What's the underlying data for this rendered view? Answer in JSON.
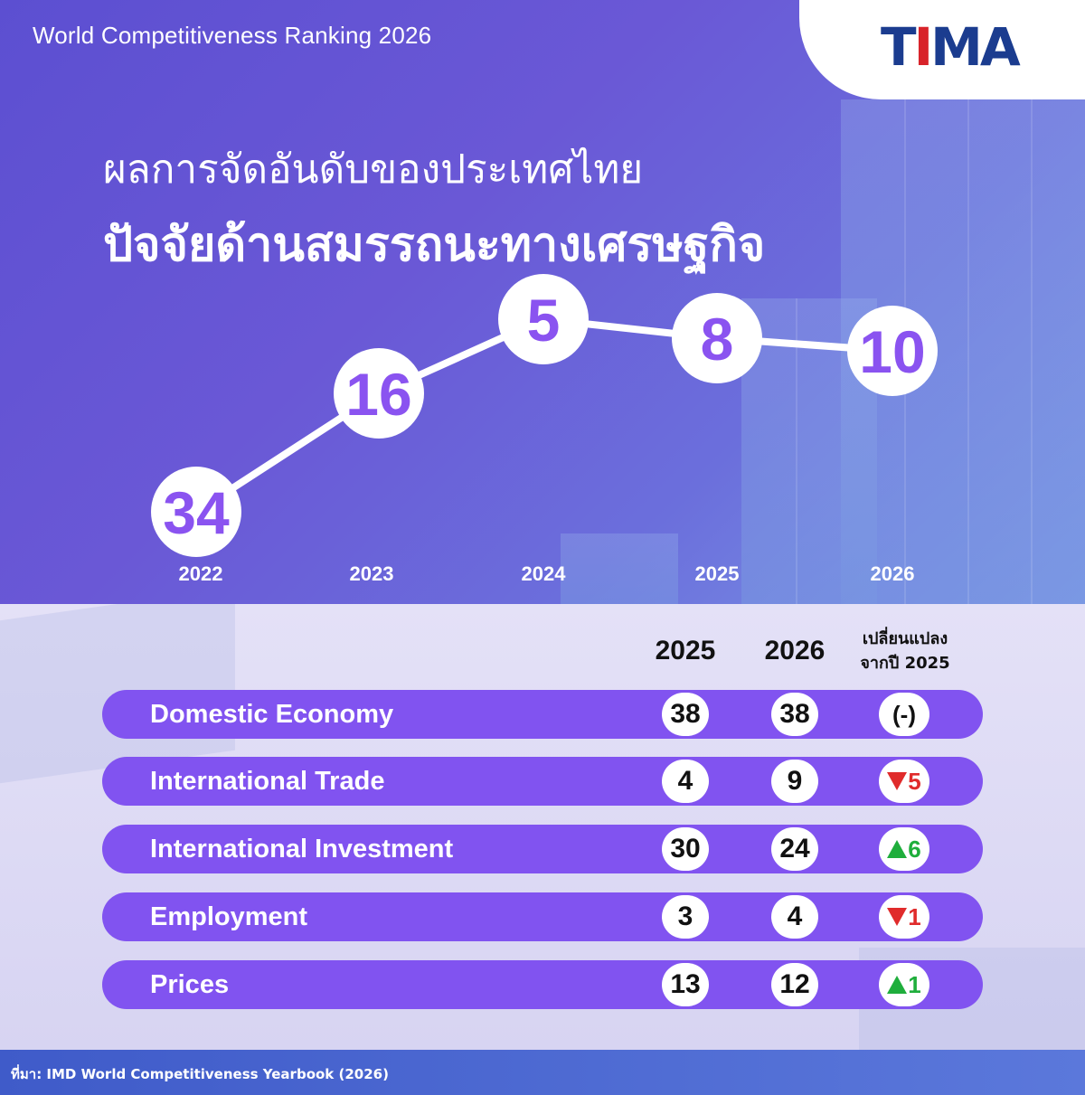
{
  "header": {
    "title": "World Competitiveness Ranking 2026"
  },
  "logo": {
    "text_first": "T",
    "text_red": "I",
    "text_rest": "MA"
  },
  "titles": {
    "line1": "ผลการจัดอันดับของประเทศไทย",
    "line2": "ปัจจัยด้านสมรรถนะทางเศรษฐกิจ"
  },
  "chart_data": {
    "type": "line",
    "x": [
      "2022",
      "2023",
      "2024",
      "2025",
      "2026"
    ],
    "values": [
      34,
      16,
      5,
      8,
      10
    ],
    "y_inverted": true,
    "colors": {
      "line": "#ffffff",
      "marker_fill": "#ffffff",
      "label": "#8a53f0"
    }
  },
  "table": {
    "headers": {
      "y2025": "2025",
      "y2026": "2026",
      "change_line1": "เปลี่ยนแปลง",
      "change_line2": "จากปี 2025"
    },
    "rows": [
      {
        "label": "Domestic Economy",
        "v2025": "38",
        "v2026": "38",
        "change": "(-)",
        "direction": "none"
      },
      {
        "label": "International Trade",
        "v2025": "4",
        "v2026": "9",
        "change": "5",
        "direction": "down"
      },
      {
        "label": "International Investment",
        "v2025": "30",
        "v2026": "24",
        "change": "6",
        "direction": "up"
      },
      {
        "label": "Employment",
        "v2025": "3",
        "v2026": "4",
        "change": "1",
        "direction": "down"
      },
      {
        "label": "Prices",
        "v2025": "13",
        "v2026": "12",
        "change": "1",
        "direction": "up"
      }
    ],
    "colors": {
      "row_bg": "#8153f0",
      "up": "#1fae3c",
      "down": "#e02b2b"
    }
  },
  "footer": {
    "source": "ที่มา: IMD World Competitiveness Yearbook (2026)"
  }
}
